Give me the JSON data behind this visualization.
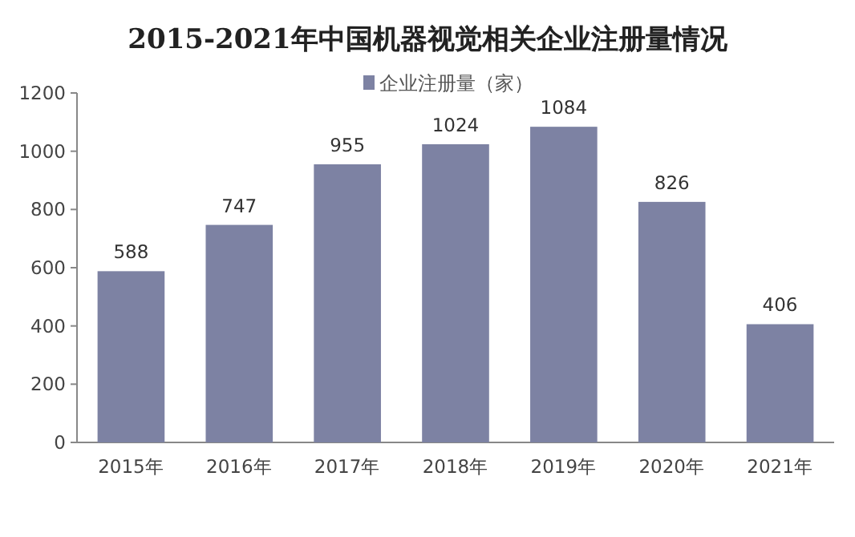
{
  "chart_data": {
    "type": "bar",
    "title": "2015-2021年中国机器视觉相关企业注册量情况",
    "categories": [
      "2015年",
      "2016年",
      "2017年",
      "2018年",
      "2019年",
      "2020年",
      "2021年"
    ],
    "series": [
      {
        "name": "企业注册量（家）",
        "color": "#7d82a3",
        "values": [
          588,
          747,
          955,
          1024,
          1084,
          826,
          406
        ]
      }
    ],
    "ylim": [
      0,
      1200
    ],
    "yticks": [
      0,
      200,
      400,
      600,
      800,
      1000,
      1200
    ],
    "data_labels": true,
    "legend": "top"
  }
}
